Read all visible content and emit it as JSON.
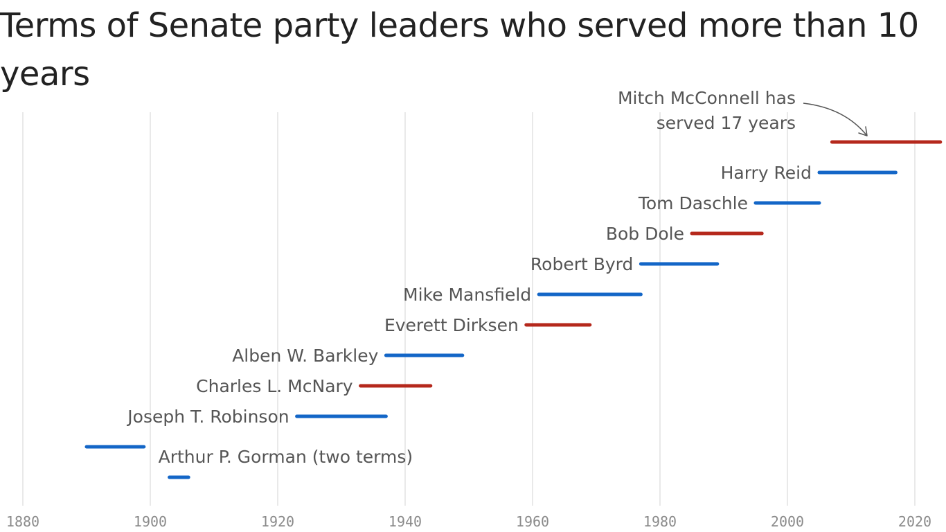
{
  "chart_data": {
    "type": "range-bar",
    "title": "Terms of Senate party leaders who served more than 10 years",
    "xlim": [
      1880,
      2024
    ],
    "x_ticks": [
      "1880",
      "1900",
      "1920",
      "1940",
      "1960",
      "1980",
      "2000",
      "2020"
    ],
    "grid": true,
    "colors": {
      "Democrat": "#1366c7",
      "Republican": "#b5281c"
    },
    "leaders": [
      {
        "name": "Mitch McConnell",
        "label": "",
        "party": "Republican",
        "terms": [
          [
            2007,
            2024
          ]
        ]
      },
      {
        "name": "Harry Reid",
        "label": "Harry Reid",
        "party": "Democrat",
        "terms": [
          [
            2005,
            2017
          ]
        ]
      },
      {
        "name": "Tom Daschle",
        "label": "Tom Daschle",
        "party": "Democrat",
        "terms": [
          [
            1995,
            2005
          ]
        ]
      },
      {
        "name": "Bob Dole",
        "label": "Bob Dole",
        "party": "Republican",
        "terms": [
          [
            1985,
            1996
          ]
        ]
      },
      {
        "name": "Robert Byrd",
        "label": "Robert Byrd",
        "party": "Democrat",
        "terms": [
          [
            1977,
            1989
          ]
        ]
      },
      {
        "name": "Mike Mansfield",
        "label": "Mike Mansfield",
        "party": "Democrat",
        "terms": [
          [
            1961,
            1977
          ]
        ]
      },
      {
        "name": "Everett Dirksen",
        "label": "Everett Dirksen",
        "party": "Republican",
        "terms": [
          [
            1959,
            1969
          ]
        ]
      },
      {
        "name": "Alben W. Barkley",
        "label": "Alben W. Barkley",
        "party": "Democrat",
        "terms": [
          [
            1937,
            1949
          ]
        ]
      },
      {
        "name": "Charles L. McNary",
        "label": "Charles L. McNary",
        "party": "Republican",
        "terms": [
          [
            1933,
            1944
          ]
        ]
      },
      {
        "name": "Joseph T. Robinson",
        "label": "Joseph T. Robinson",
        "party": "Democrat",
        "terms": [
          [
            1923,
            1937
          ]
        ]
      },
      {
        "name": "Arthur P. Gorman",
        "label": "Arthur P. Gorman (two terms)",
        "party": "Democrat",
        "terms": [
          [
            1890,
            1899
          ],
          [
            1903,
            1906
          ]
        ]
      }
    ],
    "annotation": {
      "lines": [
        "Mitch McConnell has",
        "served 17 years"
      ],
      "target": "Mitch McConnell"
    }
  }
}
